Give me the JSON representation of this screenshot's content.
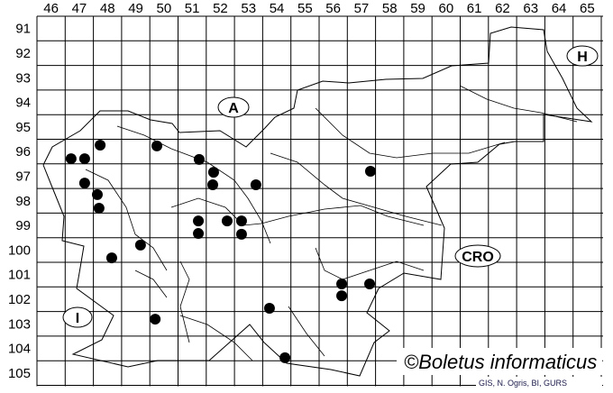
{
  "map": {
    "columns": [
      "46",
      "47",
      "48",
      "49",
      "50",
      "51",
      "52",
      "53",
      "54",
      "55",
      "56",
      "57",
      "58",
      "59",
      "60",
      "61",
      "62",
      "63",
      "64",
      "65"
    ],
    "rows": [
      "91",
      "92",
      "93",
      "94",
      "95",
      "96",
      "97",
      "98",
      "99",
      "100",
      "101",
      "102",
      "103",
      "104",
      "105"
    ],
    "regions": [
      {
        "id": "austria",
        "label": "A"
      },
      {
        "id": "hungary",
        "label": "H"
      },
      {
        "id": "italy",
        "label": "I"
      },
      {
        "id": "croatia",
        "label": "CRO"
      }
    ],
    "records": [
      {
        "col": 47.21,
        "row": 96.79
      },
      {
        "col": 47.69,
        "row": 96.79
      },
      {
        "col": 48.24,
        "row": 96.24
      },
      {
        "col": 50.25,
        "row": 96.27
      },
      {
        "col": 47.69,
        "row": 97.78
      },
      {
        "col": 48.14,
        "row": 98.25
      },
      {
        "col": 48.2,
        "row": 98.8
      },
      {
        "col": 51.75,
        "row": 96.82
      },
      {
        "col": 52.26,
        "row": 97.34
      },
      {
        "col": 52.23,
        "row": 97.85
      },
      {
        "col": 53.76,
        "row": 97.85
      },
      {
        "col": 57.82,
        "row": 97.3
      },
      {
        "col": 51.72,
        "row": 99.32
      },
      {
        "col": 51.72,
        "row": 99.83
      },
      {
        "col": 52.74,
        "row": 99.32
      },
      {
        "col": 53.25,
        "row": 99.32
      },
      {
        "col": 53.25,
        "row": 99.86
      },
      {
        "col": 49.67,
        "row": 100.3
      },
      {
        "col": 48.65,
        "row": 100.82
      },
      {
        "col": 56.8,
        "row": 101.88
      },
      {
        "col": 57.79,
        "row": 101.88
      },
      {
        "col": 56.8,
        "row": 102.36
      },
      {
        "col": 54.24,
        "row": 102.87
      },
      {
        "col": 50.19,
        "row": 103.31
      },
      {
        "col": 54.79,
        "row": 104.88
      }
    ],
    "dot_color": "#000000"
  },
  "copyright": "©Boletus informaticus",
  "credit": "GIS, N. Ogris, BI, GURS"
}
